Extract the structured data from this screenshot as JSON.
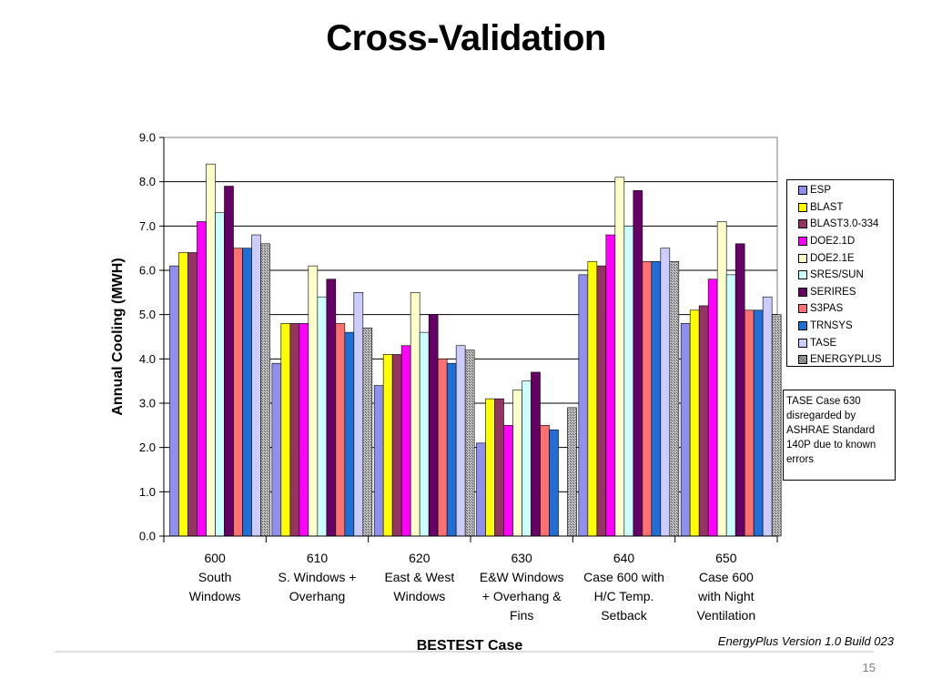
{
  "slide": {
    "title": "Cross-Validation",
    "page_number": "15",
    "version_note": "EnergyPlus Version  1.0 Build 023",
    "note": "TASE Case 630 disregarded by ASHRAE Standard 140P due to  known errors"
  },
  "chart_data": {
    "type": "bar",
    "title": "",
    "xlabel": "BESTEST Case",
    "ylabel": "Annual Cooling (MWH)",
    "ylim": [
      0,
      9
    ],
    "yticks": [
      "0.0",
      "1.0",
      "2.0",
      "3.0",
      "4.0",
      "5.0",
      "6.0",
      "7.0",
      "8.0",
      "9.0"
    ],
    "grid": true,
    "legend_position": "right",
    "categories": [
      [
        "600",
        "South",
        "Windows"
      ],
      [
        "610",
        "S. Windows +",
        "Overhang"
      ],
      [
        "620",
        "East & West",
        "Windows"
      ],
      [
        "630",
        "E&W Windows",
        "+ Overhang &",
        "Fins"
      ],
      [
        "640",
        "Case 600 with",
        "H/C Temp.",
        "Setback"
      ],
      [
        "650",
        "Case 600",
        "with Night",
        "Ventilation"
      ]
    ],
    "series": [
      {
        "name": "ESP",
        "color": "#8f8fef",
        "values": [
          6.1,
          3.9,
          3.4,
          2.1,
          5.9,
          4.8
        ]
      },
      {
        "name": "BLAST",
        "color": "#ffff00",
        "values": [
          6.4,
          4.8,
          4.1,
          3.1,
          6.2,
          5.1
        ]
      },
      {
        "name": "BLAST3.0-334",
        "color": "#943462",
        "values": [
          6.4,
          4.8,
          4.1,
          3.1,
          6.1,
          5.2
        ]
      },
      {
        "name": "DOE2.1D",
        "color": "#ff00ff",
        "values": [
          7.1,
          4.8,
          4.3,
          2.5,
          6.8,
          5.8
        ]
      },
      {
        "name": "DOE2.1E",
        "color": "#ffffcc",
        "values": [
          8.4,
          6.1,
          5.5,
          3.3,
          8.1,
          7.1
        ]
      },
      {
        "name": "SRES/SUN",
        "color": "#ccffff",
        "values": [
          7.3,
          5.4,
          4.6,
          3.5,
          7.0,
          5.9
        ]
      },
      {
        "name": "SERIRES",
        "color": "#660066",
        "values": [
          7.9,
          5.8,
          5.0,
          3.7,
          7.8,
          6.6
        ]
      },
      {
        "name": "S3PAS",
        "color": "#ff7070",
        "values": [
          6.5,
          4.8,
          4.0,
          2.5,
          6.2,
          5.1
        ]
      },
      {
        "name": "TRNSYS",
        "color": "#1f6fd6",
        "values": [
          6.5,
          4.6,
          3.9,
          2.4,
          6.2,
          5.1
        ]
      },
      {
        "name": "TASE",
        "color": "#ccccff",
        "values": [
          6.8,
          5.5,
          4.3,
          null,
          6.5,
          5.4
        ]
      },
      {
        "name": "ENERGYPLUS",
        "color": "#a0a0a0",
        "pattern": "hatch",
        "values": [
          6.6,
          4.7,
          4.2,
          2.9,
          6.2,
          5.0
        ]
      }
    ]
  }
}
